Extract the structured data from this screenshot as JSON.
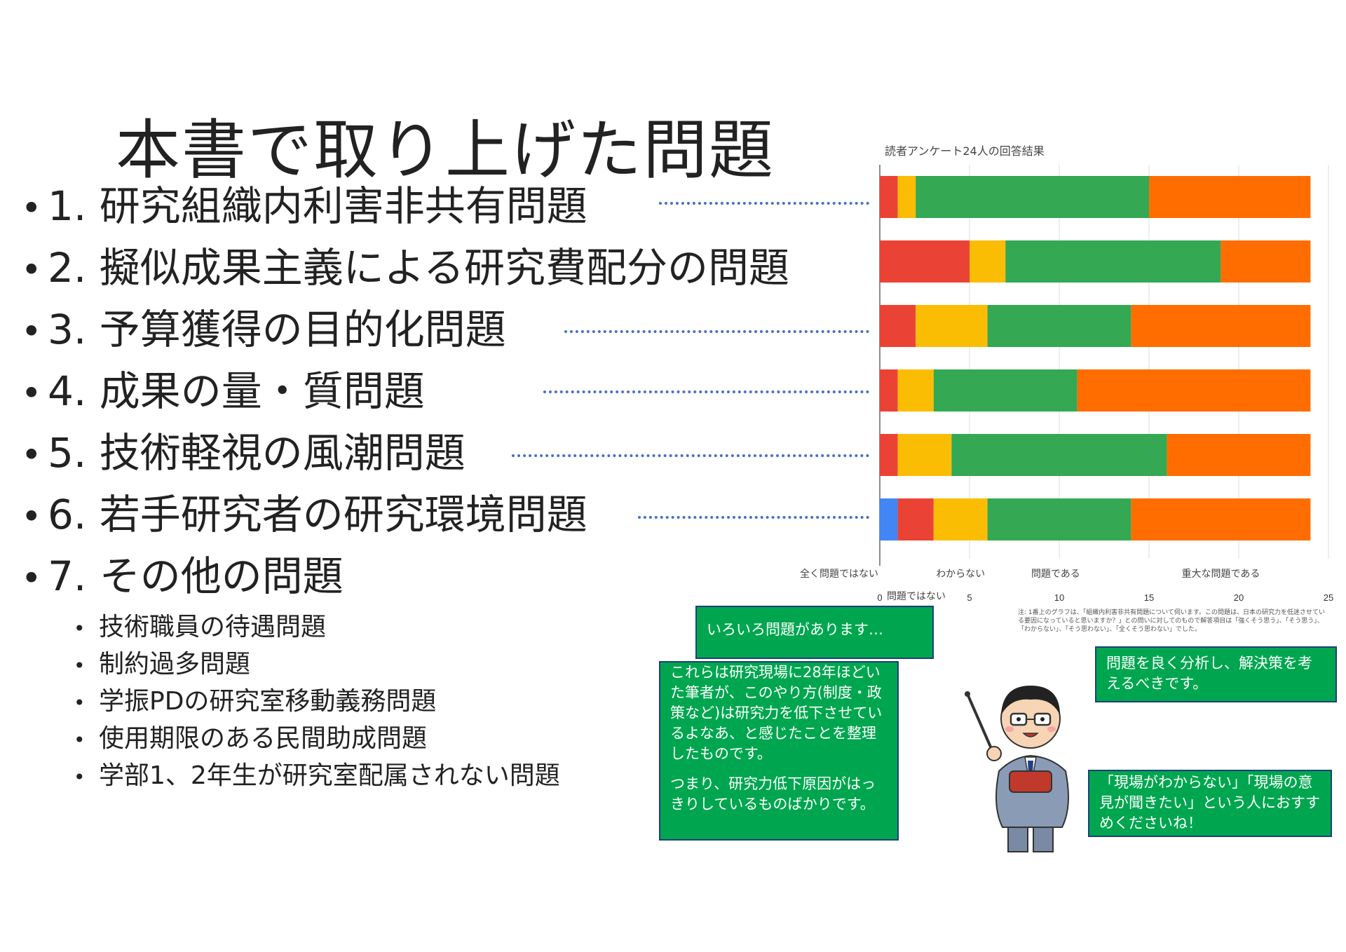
{
  "page": {
    "title": "本書で取り上げた問題",
    "main_items": [
      {
        "label": "1. 研究組織内利害非共有問題"
      },
      {
        "label": "2. 擬似成果主義による研究費配分の問題"
      },
      {
        "label": "3. 予算獲得の目的化問題"
      },
      {
        "label": "4. 成果の量・質問題"
      },
      {
        "label": "5. 技術軽視の風潮問題"
      },
      {
        "label": "6. 若手研究者の研究環境問題"
      },
      {
        "label": "7. その他の問題"
      }
    ],
    "sub_items": [
      {
        "label": "技術職員の待遇問題"
      },
      {
        "label": "制約過多問題"
      },
      {
        "label": "学振PDの研究室移動義務問題"
      },
      {
        "label": "使用期限のある民間助成問題"
      },
      {
        "label": "学部1、2年生が研究室配属されない問題"
      }
    ],
    "bullet": "•",
    "connector_color": "#4472c4"
  },
  "chart_data": {
    "type": "bar",
    "orientation": "horizontal",
    "stacked": true,
    "title": "読者アンケート24人の回答結果",
    "categories": [
      "1",
      "2",
      "3",
      "4",
      "5",
      "6"
    ],
    "series": [
      {
        "name": "全く問題ではない",
        "color": "#4285f4",
        "values": [
          0,
          0,
          0,
          0,
          0,
          1
        ]
      },
      {
        "name": "問題ではない",
        "color": "#ea4335",
        "values": [
          1,
          5,
          2,
          1,
          1,
          2
        ]
      },
      {
        "name": "わからない",
        "color": "#fbbc04",
        "values": [
          1,
          2,
          4,
          2,
          3,
          3
        ]
      },
      {
        "name": "問題である",
        "color": "#34a853",
        "values": [
          13,
          12,
          8,
          8,
          12,
          8
        ]
      },
      {
        "name": "重大な問題である",
        "color": "#ff6d01",
        "values": [
          9,
          5,
          10,
          13,
          8,
          10
        ]
      }
    ],
    "xlim": [
      0,
      25
    ],
    "xticks": [
      "0",
      "5",
      "10",
      "15",
      "20",
      "25"
    ],
    "grid": true,
    "legend": "bottom",
    "note": "注: 1番上のグラフは、「組織内利害非共有問題について伺います。この問題は、日本の研究力を低迷させている要因になっていると思いますか？」との問いに対してのもので解答項目は「強くそう思う」、「そう思う」、「わからない」、「そう思わない」、「全くそう思わない」でした。"
  },
  "bubbles": {
    "top": "いろいろ問題があります…",
    "left": "これらは研究現場に28年ほどいた筆者が、このやり方(制度・政策など)は研究力を低下させているよなあ、と感じたことを整理したものです。",
    "left2": "つまり、研究力低下原因がはっきりしているものばかりです。",
    "right_top": "問題を良く分析し、解決策を考えるべきです。",
    "right_bottom": "「現場がわからない」「現場の意見が聞きたい」という人におすすめくださいね！",
    "color": "#00a64f"
  }
}
